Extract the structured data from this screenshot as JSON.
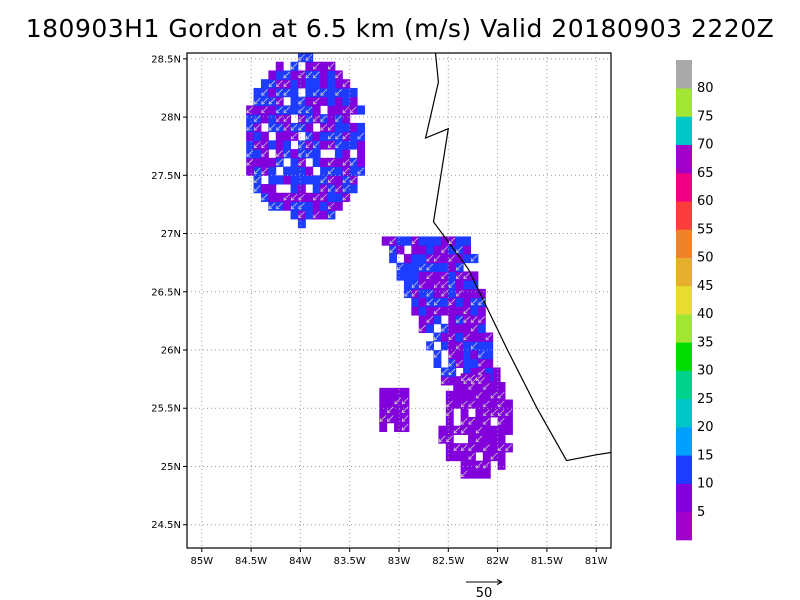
{
  "chart_data": {
    "type": "heatmap",
    "title": "180903H1 Gordon at 6.5 km (m/s) Valid 20180903 2220Z",
    "variable": "wind speed",
    "units": "m/s",
    "x_ticks": [
      "85W",
      "84.5W",
      "84W",
      "83.5W",
      "83W",
      "82.5W",
      "82W",
      "81.5W",
      "81W"
    ],
    "y_ticks": [
      "28.5N",
      "28N",
      "27.5N",
      "27N",
      "26.5N",
      "26N",
      "25.5N",
      "25N",
      "24.5N"
    ],
    "x_range": [
      -85.15,
      -80.85
    ],
    "y_range": [
      24.3,
      28.55
    ],
    "grid": true,
    "colorbar": {
      "labels": [
        "5",
        "10",
        "15",
        "20",
        "25",
        "30",
        "35",
        "40",
        "45",
        "50",
        "55",
        "60",
        "65",
        "70",
        "75",
        "80"
      ],
      "colors": [
        "#a000c8",
        "#8200dc",
        "#1e3cff",
        "#00a0ff",
        "#00c8c8",
        "#00d28c",
        "#00dc00",
        "#a0e632",
        "#e6dc32",
        "#e6af2d",
        "#f08228",
        "#fa3c3c",
        "#f00082",
        "#a000c8",
        "#00c8c8",
        "#a0e632",
        "#aaaaaa"
      ]
    },
    "reference_vector": {
      "label": "50",
      "units": "m/s"
    },
    "data_regions": [
      {
        "name": "northwest patch",
        "lat_range": [
          27.05,
          28.5
        ],
        "lon_range": [
          -84.55,
          -83.25
        ],
        "wind_speed_range_ms": [
          5,
          15
        ],
        "wind_direction": "from NE"
      },
      {
        "name": "central band",
        "lat_range": [
          25.7,
          26.9
        ],
        "lon_range": [
          -83.25,
          -81.9
        ],
        "wind_speed_range_ms": [
          5,
          15
        ],
        "wind_direction": "from NE"
      },
      {
        "name": "southern patch",
        "lat_range": [
          24.9,
          25.8
        ],
        "lon_range": [
          -82.6,
          -81.85
        ],
        "wind_speed_range_ms": [
          5,
          10
        ],
        "wind_direction": "from NE"
      },
      {
        "name": "west small patch",
        "lat_range": [
          25.3,
          25.6
        ],
        "lon_range": [
          -83.2,
          -82.95
        ],
        "wind_speed_range_ms": [
          5,
          10
        ],
        "wind_direction": "from NE"
      }
    ],
    "coastline": [
      [
        -82.63,
        28.55
      ],
      [
        -82.6,
        28.3
      ],
      [
        -82.73,
        27.82
      ],
      [
        -82.5,
        27.9
      ],
      [
        -82.65,
        27.1
      ],
      [
        -82.3,
        26.7
      ],
      [
        -81.9,
        26.0
      ],
      [
        -81.6,
        25.5
      ],
      [
        -81.3,
        25.05
      ],
      [
        -81.0,
        25.1
      ],
      [
        -80.85,
        25.12
      ]
    ]
  }
}
